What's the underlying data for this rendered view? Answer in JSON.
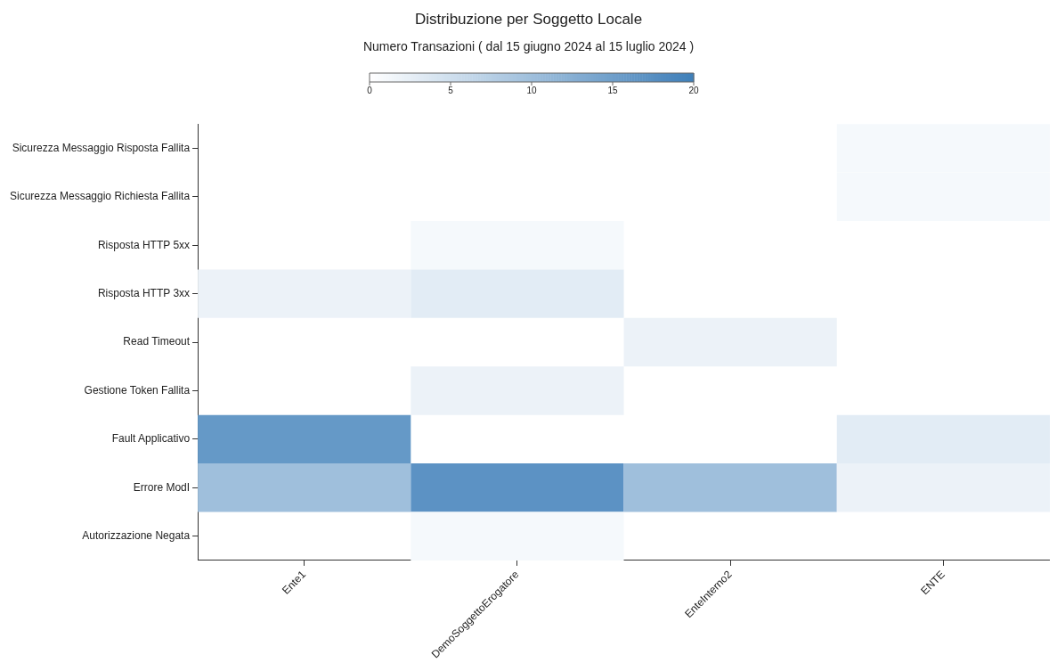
{
  "chart_data": {
    "type": "heatmap",
    "title": "Distribuzione per Soggetto Locale",
    "subtitle": "Numero Transazioni ( dal 15 giugno 2024 al 15 luglio 2024 )",
    "categories": [
      "Ente1",
      "DemoSoggettoErogatore",
      "EnteInterno2",
      "ENTE"
    ],
    "y_categories": [
      "Sicurezza Messaggio Risposta Fallita",
      "Sicurezza Messaggio Richiesta Fallita",
      "Risposta HTTP 5xx",
      "Risposta HTTP 3xx",
      "Read Timeout",
      "Gestione Token Fallita",
      "Fault Applicativo",
      "Errore ModI",
      "Autorizzazione Negata"
    ],
    "cells": [
      [
        null,
        null,
        null,
        1
      ],
      [
        null,
        null,
        null,
        1
      ],
      [
        null,
        1,
        null,
        null
      ],
      [
        2,
        3,
        null,
        null
      ],
      [
        null,
        null,
        2,
        null
      ],
      [
        null,
        2,
        null,
        null
      ],
      [
        16,
        null,
        null,
        3
      ],
      [
        10,
        17,
        10,
        2
      ],
      [
        null,
        1,
        null,
        null
      ]
    ],
    "color": "#3f7fb9",
    "clim": [
      0,
      20
    ],
    "cticks": [
      0,
      5,
      10,
      15,
      20
    ],
    "grid": false
  }
}
